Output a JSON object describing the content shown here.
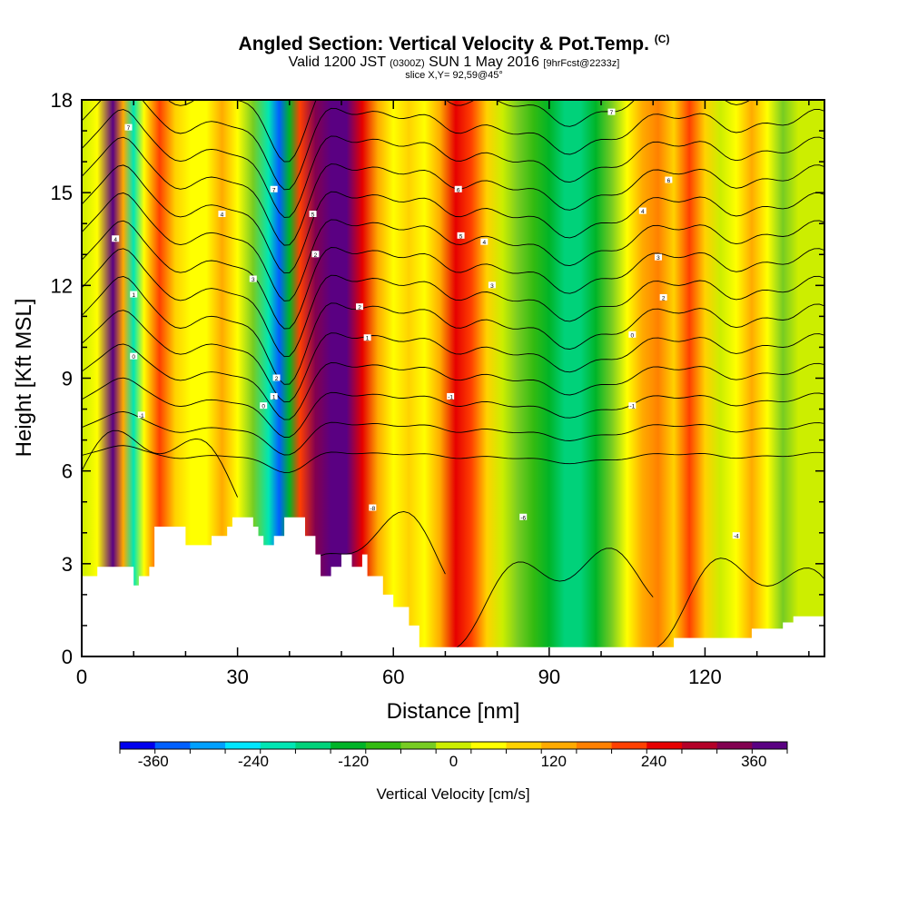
{
  "header": {
    "title": "Angled Section: Vertical Velocity & Pot.Temp.",
    "title_unit": "(C)",
    "valid_prefix": "Valid 1200 JST",
    "valid_zulu": "(0300Z)",
    "valid_date": "SUN 1 May 2016",
    "forecast": "[9hrFcst@2233z]",
    "slice": "slice X,Y= 92,59@45°"
  },
  "chart_data": {
    "type": "heatmap",
    "xlabel": "Distance [nm]",
    "ylabel": "Height [Kft MSL]",
    "xlim": [
      0,
      143
    ],
    "ylim": [
      0,
      18
    ],
    "x_ticks": [
      0,
      30,
      60,
      90,
      120
    ],
    "y_ticks": [
      0,
      3,
      6,
      9,
      12,
      15,
      18
    ],
    "colorbar": {
      "label": "Vertical Velocity [cm/s]",
      "tick_labels": [
        "-360",
        "-240",
        "-120",
        "0",
        "120",
        "240",
        "360"
      ],
      "tick_values": [
        -360,
        -240,
        -120,
        0,
        120,
        240,
        360
      ],
      "range": [
        -400,
        400
      ],
      "colors": [
        "#0000ee",
        "#0060ff",
        "#00a0ff",
        "#00e6ff",
        "#00e6b4",
        "#00d27a",
        "#00b428",
        "#33bb11",
        "#77cc22",
        "#ccee00",
        "#ffff00",
        "#ffd200",
        "#ffaa00",
        "#ff8000",
        "#ff4000",
        "#e60000",
        "#b40028",
        "#820050",
        "#5a0082"
      ]
    },
    "velocity_columns": [
      {
        "x": 0,
        "value": 20
      },
      {
        "x": 3,
        "value": 60
      },
      {
        "x": 6,
        "value": 360
      },
      {
        "x": 8,
        "value": 120
      },
      {
        "x": 10,
        "value": -200
      },
      {
        "x": 12,
        "value": 40
      },
      {
        "x": 15,
        "value": 200
      },
      {
        "x": 18,
        "value": 100
      },
      {
        "x": 21,
        "value": 30
      },
      {
        "x": 24,
        "value": 60
      },
      {
        "x": 27,
        "value": 140
      },
      {
        "x": 30,
        "value": 40
      },
      {
        "x": 33,
        "value": -40
      },
      {
        "x": 36,
        "value": -200
      },
      {
        "x": 38,
        "value": -340
      },
      {
        "x": 40,
        "value": -120
      },
      {
        "x": 42,
        "value": 200
      },
      {
        "x": 45,
        "value": 340
      },
      {
        "x": 48,
        "value": 380
      },
      {
        "x": 51,
        "value": 360
      },
      {
        "x": 54,
        "value": 250
      },
      {
        "x": 57,
        "value": 120
      },
      {
        "x": 60,
        "value": 60
      },
      {
        "x": 63,
        "value": 100
      },
      {
        "x": 66,
        "value": 60
      },
      {
        "x": 69,
        "value": 140
      },
      {
        "x": 72,
        "value": 260
      },
      {
        "x": 75,
        "value": 200
      },
      {
        "x": 78,
        "value": 100
      },
      {
        "x": 81,
        "value": 0
      },
      {
        "x": 84,
        "value": -60
      },
      {
        "x": 87,
        "value": -100
      },
      {
        "x": 90,
        "value": -120
      },
      {
        "x": 93,
        "value": -170
      },
      {
        "x": 96,
        "value": -170
      },
      {
        "x": 99,
        "value": -120
      },
      {
        "x": 102,
        "value": -60
      },
      {
        "x": 105,
        "value": 40
      },
      {
        "x": 108,
        "value": 120
      },
      {
        "x": 111,
        "value": 160
      },
      {
        "x": 114,
        "value": 100
      },
      {
        "x": 117,
        "value": 200
      },
      {
        "x": 120,
        "value": 80
      },
      {
        "x": 123,
        "value": 20
      },
      {
        "x": 126,
        "value": 60
      },
      {
        "x": 129,
        "value": 130
      },
      {
        "x": 132,
        "value": 30
      },
      {
        "x": 135,
        "value": -30
      },
      {
        "x": 138,
        "value": 20
      },
      {
        "x": 141,
        "value": 10
      },
      {
        "x": 143,
        "value": 20
      }
    ],
    "terrain": [
      [
        0,
        2.6
      ],
      [
        3,
        2.9
      ],
      [
        9,
        2.9
      ],
      [
        10,
        2.3
      ],
      [
        11,
        2.6
      ],
      [
        13,
        2.9
      ],
      [
        14,
        4.2
      ],
      [
        17,
        4.2
      ],
      [
        20,
        3.6
      ],
      [
        24,
        3.6
      ],
      [
        25,
        3.9
      ],
      [
        28,
        4.2
      ],
      [
        29,
        4.5
      ],
      [
        31,
        4.5
      ],
      [
        33,
        4.2
      ],
      [
        34,
        3.9
      ],
      [
        35,
        3.6
      ],
      [
        37,
        3.9
      ],
      [
        39,
        4.5
      ],
      [
        42,
        4.5
      ],
      [
        43,
        3.9
      ],
      [
        45,
        3.3
      ],
      [
        46,
        2.6
      ],
      [
        48,
        2.9
      ],
      [
        50,
        3.3
      ],
      [
        52,
        2.9
      ],
      [
        54,
        3.3
      ],
      [
        55,
        2.6
      ],
      [
        57,
        2.6
      ],
      [
        58,
        2.0
      ],
      [
        60,
        1.6
      ],
      [
        63,
        1.0
      ],
      [
        65,
        0.3
      ],
      [
        71,
        0.3
      ],
      [
        72,
        0.3
      ],
      [
        95,
        0.3
      ],
      [
        100,
        0.3
      ],
      [
        105,
        0.3
      ],
      [
        113,
        0.3
      ],
      [
        114,
        0.6
      ],
      [
        126,
        0.6
      ],
      [
        129,
        0.9
      ],
      [
        135,
        1.1
      ],
      [
        137,
        1.3
      ],
      [
        143,
        1.3
      ]
    ],
    "contour_labels": [
      {
        "x": 9,
        "y": 17.1,
        "text": "7"
      },
      {
        "x": 6.5,
        "y": 13.5,
        "text": "4"
      },
      {
        "x": 10,
        "y": 11.7,
        "text": "1"
      },
      {
        "x": 10,
        "y": 9.7,
        "text": "0"
      },
      {
        "x": 11.5,
        "y": 7.8,
        "text": "-1"
      },
      {
        "x": 27,
        "y": 14.3,
        "text": "4"
      },
      {
        "x": 33,
        "y": 12.2,
        "text": "3"
      },
      {
        "x": 37,
        "y": 8.4,
        "text": "1"
      },
      {
        "x": 35,
        "y": 8.1,
        "text": "0"
      },
      {
        "x": 37.5,
        "y": 9.0,
        "text": "2"
      },
      {
        "x": 37,
        "y": 15.1,
        "text": "7"
      },
      {
        "x": 44.5,
        "y": 14.3,
        "text": "5"
      },
      {
        "x": 45,
        "y": 13.0,
        "text": "2"
      },
      {
        "x": 53.5,
        "y": 11.3,
        "text": "2"
      },
      {
        "x": 55,
        "y": 10.3,
        "text": "1"
      },
      {
        "x": 56,
        "y": 4.8,
        "text": "-8"
      },
      {
        "x": 72.5,
        "y": 15.1,
        "text": "6"
      },
      {
        "x": 73,
        "y": 13.6,
        "text": "5"
      },
      {
        "x": 77.5,
        "y": 13.4,
        "text": "4"
      },
      {
        "x": 79,
        "y": 12.0,
        "text": "3"
      },
      {
        "x": 71,
        "y": 8.4,
        "text": "-1"
      },
      {
        "x": 85,
        "y": 4.5,
        "text": "-6"
      },
      {
        "x": 102,
        "y": 17.6,
        "text": "7"
      },
      {
        "x": 113,
        "y": 15.4,
        "text": "6"
      },
      {
        "x": 108,
        "y": 14.4,
        "text": "4"
      },
      {
        "x": 111,
        "y": 12.9,
        "text": "3"
      },
      {
        "x": 112,
        "y": 11.6,
        "text": "2"
      },
      {
        "x": 106,
        "y": 10.4,
        "text": "0"
      },
      {
        "x": 106,
        "y": 8.1,
        "text": "-1"
      },
      {
        "x": 126,
        "y": 3.9,
        "text": "-4"
      }
    ]
  }
}
